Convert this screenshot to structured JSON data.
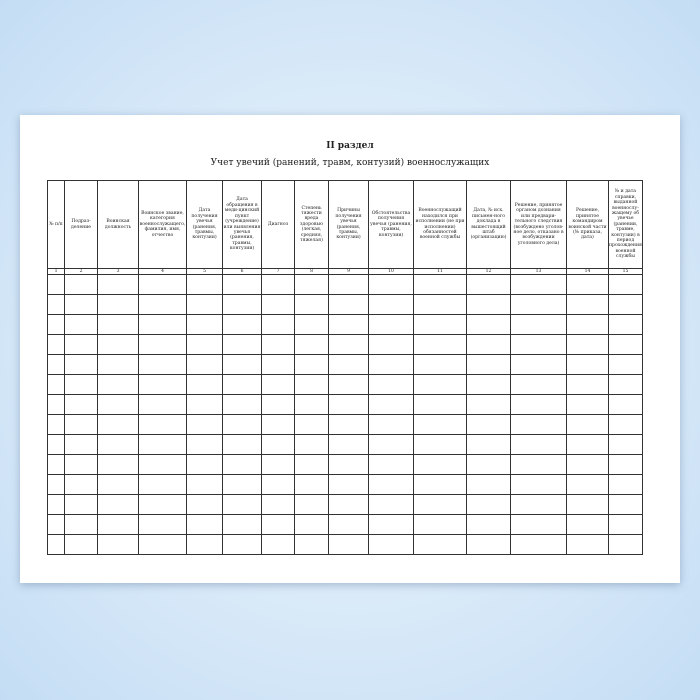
{
  "section_title": "II раздел",
  "table_title": "Учет увечий (ранений, травм, контузий) военнослужащих",
  "columns": [
    {
      "n": "1",
      "label": "№ п/п"
    },
    {
      "n": "2",
      "label": "Подраз-деление"
    },
    {
      "n": "3",
      "label": "Воинская должность"
    },
    {
      "n": "4",
      "label": "Воинское звание, категория военнослужащего, фамилия, имя, отчество"
    },
    {
      "n": "5",
      "label": "Дата получения увечья (ранения, травмы, контузии)"
    },
    {
      "n": "6",
      "label": "Дата обращения в меди-цинский пункт (учреждение) или выявления увечья (ранения, травмы, контузии)"
    },
    {
      "n": "7",
      "label": "Диагноз"
    },
    {
      "n": "8",
      "label": "Степень тяжести вреда здоровью (легкая, средняя, тяжелая)"
    },
    {
      "n": "9",
      "label": "Причины получения увечья (ранения, травмы, контузии)"
    },
    {
      "n": "10",
      "label": "Обстоятельства получения увечья (ранения, травмы, контузии)"
    },
    {
      "n": "11",
      "label": "Военнослужащий находился при исполнении (не при исполнении) обязанностей военной службы"
    },
    {
      "n": "12",
      "label": "Дата, № исх. письмен-ного доклада в вышестоящий штаб (организацию)"
    },
    {
      "n": "13",
      "label": "Решение, принятое органом дознания или предвари-тельного следствия (возбуждено уголов-ное дело, отказано в возбуждении уголовного дела)"
    },
    {
      "n": "14",
      "label": "Решение, принятое командиром воинской части (№ приказа, дата)"
    },
    {
      "n": "15",
      "label": "№ и дата справки, выданной военнослу-жащему об увечье (ранении, травме, контузии) в период прохождения военной службы"
    }
  ]
}
